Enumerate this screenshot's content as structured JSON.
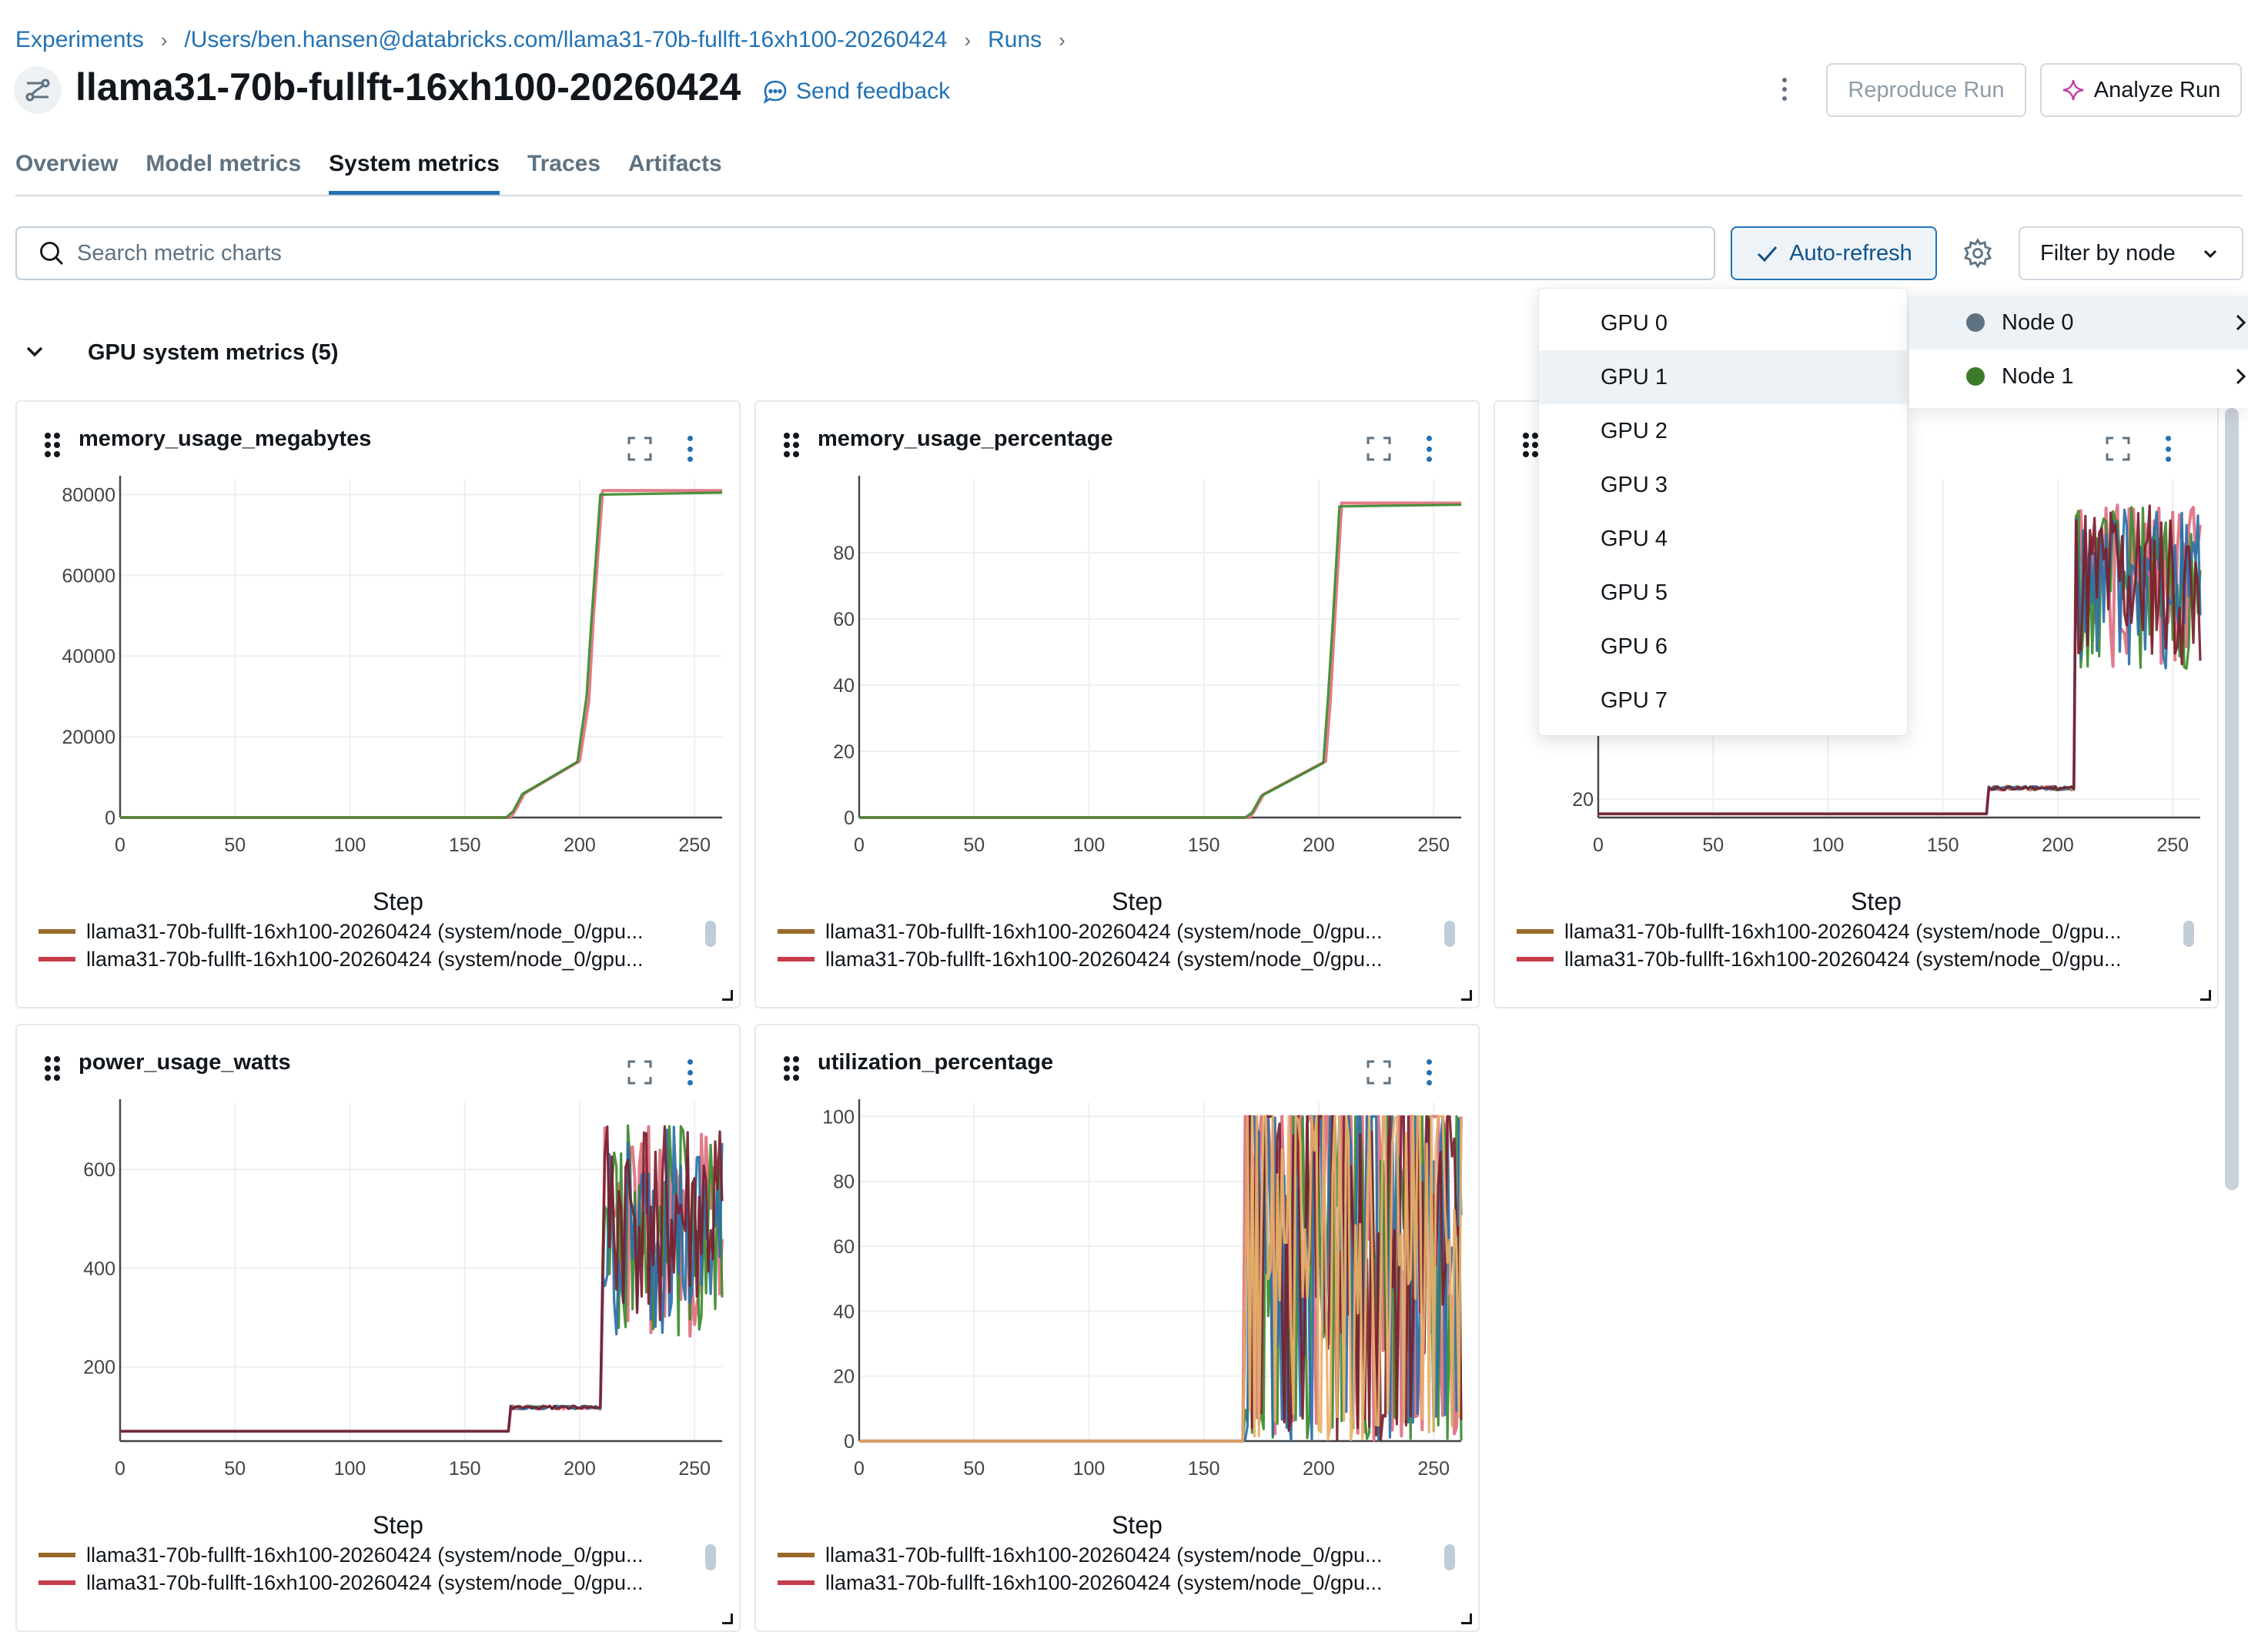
{
  "breadcrumb": {
    "experiments": "Experiments",
    "path": "/Users/ben.hansen@databricks.com/llama31-70b-fullft-16xh100-20260424",
    "runs": "Runs",
    "separator": "›"
  },
  "header": {
    "run_icon": "run-icon",
    "title": "llama31-70b-fullft-16xh100-20260424",
    "feedback_label": "Send feedback",
    "more_icon": "kebab-icon",
    "reproduce_label": "Reproduce Run",
    "analyze_label": "Analyze Run"
  },
  "tabs": [
    {
      "label": "Overview",
      "active": false
    },
    {
      "label": "Model metrics",
      "active": false
    },
    {
      "label": "System metrics",
      "active": true
    },
    {
      "label": "Traces",
      "active": false
    },
    {
      "label": "Artifacts",
      "active": false
    }
  ],
  "toolbar": {
    "search_placeholder": "Search metric charts",
    "auto_refresh_label": "Auto-refresh",
    "filter_label": "Filter by node"
  },
  "section": {
    "title": "GPU system metrics (5)"
  },
  "dropdown": {
    "gpus": [
      "GPU 0",
      "GPU 1",
      "GPU 2",
      "GPU 3",
      "GPU 4",
      "GPU 5",
      "GPU 6",
      "GPU 7"
    ],
    "highlighted_gpu": "GPU 1",
    "nodes": [
      {
        "label": "Node 0",
        "color": "#5f7281"
      },
      {
        "label": "Node 1",
        "color": "#3b7a2a"
      }
    ]
  },
  "colors": {
    "accent": "#2272b4",
    "series_brown": "#9a6a2a",
    "series_red": "#c83c4c"
  },
  "legend_entries": [
    "llama31-70b-fullft-16xh100-20260424 (system/node_0/gpu...",
    "llama31-70b-fullft-16xh100-20260424 (system/node_0/gpu..."
  ],
  "chart_data": [
    {
      "type": "line",
      "title": "memory_usage_megabytes",
      "xlabel": "Step",
      "xlim": [
        0,
        262
      ],
      "ylim": [
        0,
        82000
      ],
      "xticks": [
        0,
        50,
        100,
        150,
        200,
        250
      ],
      "yticks": [
        0,
        20000,
        40000,
        60000,
        80000
      ],
      "series": [
        {
          "color": "#e0707f",
          "x": [
            0,
            170,
            172,
            176,
            200,
            204,
            206,
            210,
            262
          ],
          "y": [
            0,
            0,
            1800,
            6000,
            14000,
            29000,
            50000,
            81000,
            81000
          ]
        },
        {
          "color": "#3b8a2e",
          "x": [
            0,
            168,
            171,
            175,
            199,
            203,
            205,
            209,
            262
          ],
          "y": [
            0,
            0,
            1500,
            5800,
            13800,
            30000,
            48000,
            80000,
            80500
          ]
        }
      ]
    },
    {
      "type": "line",
      "title": "memory_usage_percentage",
      "xlabel": "Step",
      "xlim": [
        0,
        262
      ],
      "ylim": [
        0,
        100
      ],
      "xticks": [
        0,
        50,
        100,
        150,
        200,
        250
      ],
      "yticks": [
        0,
        20,
        40,
        60,
        80
      ],
      "series": [
        {
          "color": "#e0707f",
          "x": [
            0,
            170,
            172,
            176,
            203,
            205,
            207,
            210,
            262
          ],
          "y": [
            0,
            0,
            2,
            7,
            17,
            35,
            60,
            95,
            95
          ]
        },
        {
          "color": "#3b8a2e",
          "x": [
            0,
            168,
            171,
            175,
            202,
            204,
            206,
            209,
            262
          ],
          "y": [
            0,
            0,
            1.5,
            6.5,
            16.5,
            36,
            58,
            94,
            94.5
          ]
        }
      ]
    },
    {
      "type": "line",
      "title": "",
      "xlabel": "Step",
      "xlim": [
        0,
        262
      ],
      "ylim": [
        15,
        105
      ],
      "xticks": [
        0,
        50,
        100,
        150,
        200,
        250
      ],
      "yticks": [
        20
      ],
      "noisy": {
        "start": 208,
        "min": 55,
        "max": 100,
        "base_low": 16,
        "mid_start": 170,
        "mid_level": 23
      },
      "series": [
        {
          "color": "#e0707f"
        },
        {
          "color": "#3b8a2e"
        },
        {
          "color": "#2c6fa8"
        },
        {
          "color": "#7a1f2e"
        }
      ]
    },
    {
      "type": "line",
      "title": "power_usage_watts",
      "xlabel": "Step",
      "xlim": [
        0,
        262
      ],
      "ylim": [
        50,
        720
      ],
      "xticks": [
        0,
        50,
        100,
        150,
        200,
        250
      ],
      "yticks": [
        200,
        400,
        600
      ],
      "noisy": {
        "start": 210,
        "min": 260,
        "max": 690,
        "base_low": 70,
        "mid_start": 170,
        "mid_level": 118
      },
      "series": [
        {
          "color": "#e0707f"
        },
        {
          "color": "#3b8a2e"
        },
        {
          "color": "#2c6fa8"
        },
        {
          "color": "#7a1f2e"
        }
      ]
    },
    {
      "type": "line",
      "title": "utilization_percentage",
      "xlabel": "Step",
      "xlim": [
        0,
        262
      ],
      "ylim": [
        0,
        102
      ],
      "xticks": [
        0,
        50,
        100,
        150,
        200,
        250
      ],
      "yticks": [
        0,
        20,
        40,
        60,
        80,
        100
      ],
      "noisy": {
        "start": 168,
        "min": 0,
        "max": 100,
        "base_low": 0,
        "mid_start": 168,
        "mid_level": 0,
        "spiky": true
      },
      "series": [
        {
          "color": "#e0707f"
        },
        {
          "color": "#3b8a2e"
        },
        {
          "color": "#2c6fa8"
        },
        {
          "color": "#7a1f2e"
        },
        {
          "color": "#e8b06a"
        }
      ]
    }
  ]
}
